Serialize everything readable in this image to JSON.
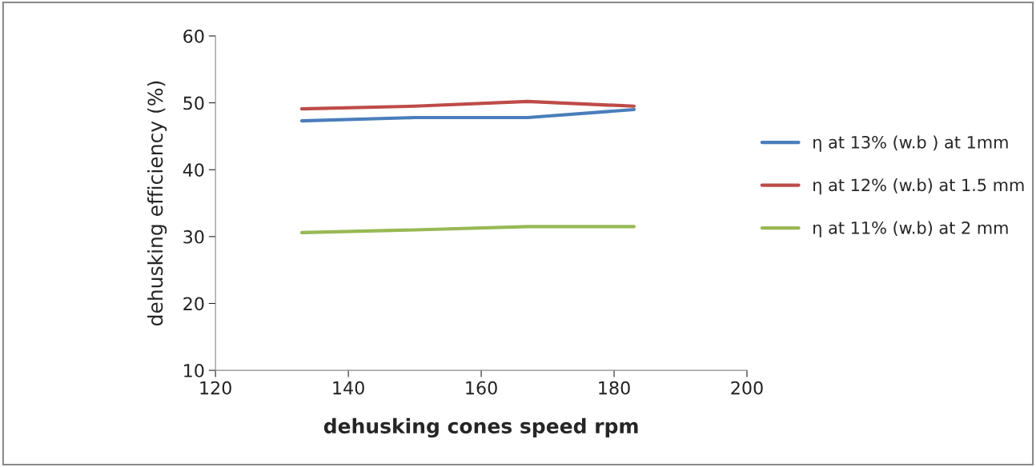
{
  "chart_data": {
    "type": "line",
    "xlabel": "dehusking cones speed rpm",
    "ylabel": "dehusking efficiency (%)",
    "x": [
      133,
      150,
      167,
      183
    ],
    "series": [
      {
        "name": "η at 13% (w.b ) at 1mm",
        "color": "#4a7ebb",
        "values": [
          47.3,
          47.8,
          47.8,
          49.0
        ]
      },
      {
        "name": "η at 12% (w.b) at 1.5 mm",
        "color": "#be4b48",
        "values": [
          49.1,
          49.5,
          50.2,
          49.5
        ]
      },
      {
        "name": "η at 11% (w.b) at 2 mm",
        "color": "#98b954",
        "values": [
          30.6,
          31.0,
          31.5,
          31.5
        ]
      }
    ],
    "xlim": [
      120,
      200
    ],
    "xticks": [
      120,
      140,
      160,
      180,
      200
    ],
    "ylim": [
      10,
      60
    ],
    "yticks": [
      10,
      20,
      30,
      40,
      50,
      60
    ],
    "grid": false,
    "legend": "right",
    "marker": "none",
    "line_style": "solid"
  }
}
